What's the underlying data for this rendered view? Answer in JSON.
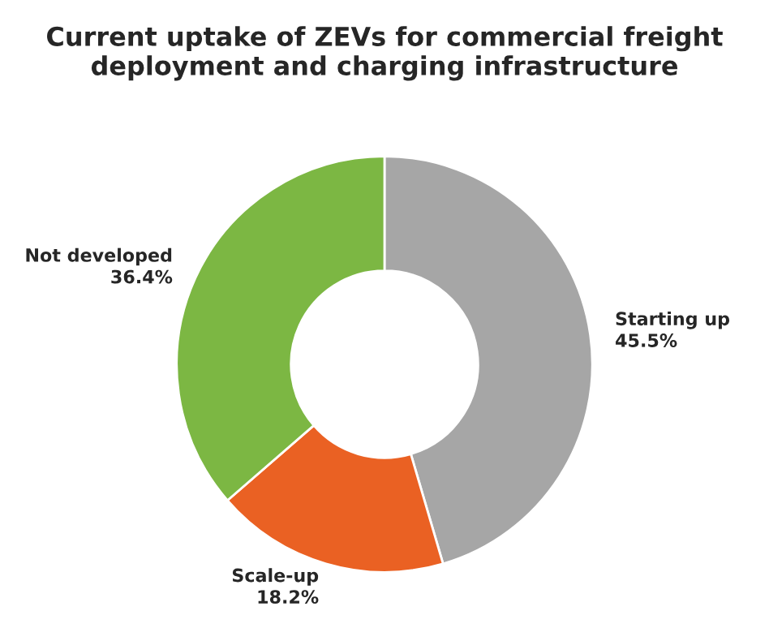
{
  "chart_data": {
    "type": "donut",
    "title": "Current uptake of ZEVs for commercial freight deployment and charging infrastructure",
    "categories": [
      "Starting up",
      "Scale-up",
      "Not developed"
    ],
    "values": [
      45.5,
      18.2,
      36.4
    ],
    "colors": [
      "#a6a6a6",
      "#ea6123",
      "#7cb743"
    ],
    "value_labels": [
      "45.5%",
      "18.2%",
      "36.4%"
    ],
    "legend": false
  }
}
